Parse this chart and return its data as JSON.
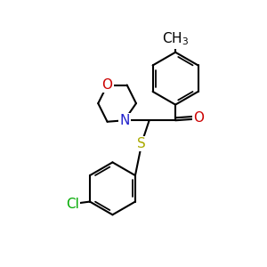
{
  "bg_color": "#ffffff",
  "atom_colors": {
    "C": "#000000",
    "N": "#2222cc",
    "O": "#cc0000",
    "S": "#aaaa00",
    "Cl": "#00aa00"
  },
  "bond_color": "#000000",
  "bond_width": 1.5,
  "font_size": 10,
  "figsize": [
    3.0,
    3.0
  ],
  "dpi": 100
}
